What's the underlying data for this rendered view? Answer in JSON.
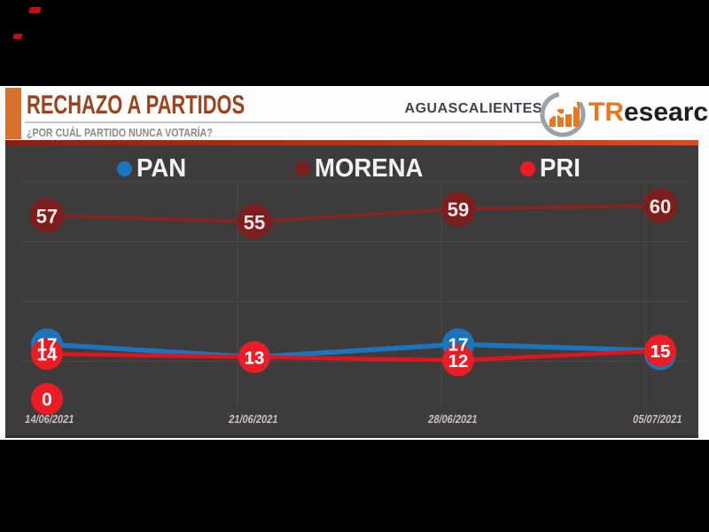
{
  "header": {
    "title": "RECHAZO A PARTIDOS",
    "subtitle": "¿POR CUÁL PARTIDO NUNCA VOTARÍA?",
    "region_label": "AGUASCALIENTES",
    "brand_prefix": "TR",
    "brand_suffix": "esearch",
    "title_color": "#9A431C",
    "accent_color": "#D9712E",
    "brand_color": "#E87722",
    "divider_from": "#931B0E",
    "divider_to": "#DE4A1C"
  },
  "chart_data": {
    "type": "line",
    "title": "RECHAZO A PARTIDOS",
    "question": "¿POR CUÁL PARTIDO NUNCA VOTARÍA?",
    "x_labels": [
      "14/06/2021",
      "21/06/2021",
      "28/06/2021",
      "05/07/2021"
    ],
    "series": [
      {
        "name": "PAN",
        "color": "#1B75BC",
        "line_color": "#1B75BC",
        "values": [
          17,
          13,
          17,
          15
        ]
      },
      {
        "name": "MORENA",
        "color": "#7C1E1E",
        "line_color": "#8C231E",
        "values": [
          57,
          55,
          59,
          60
        ]
      },
      {
        "name": "PRI",
        "color": "#EB1C24",
        "line_color": "#E4131B",
        "values": [
          14,
          13,
          12,
          15
        ]
      }
    ],
    "extra_points": [
      {
        "x_label": "14/06/2021",
        "x_index": 0,
        "value": 0,
        "color": "#EB1C24"
      }
    ],
    "legend_position": "top",
    "value_labels_on_points": true,
    "grid": true,
    "ylim": [
      0,
      70
    ],
    "panel_color": "#3E3B3B",
    "grid_color": "#4A4747"
  }
}
